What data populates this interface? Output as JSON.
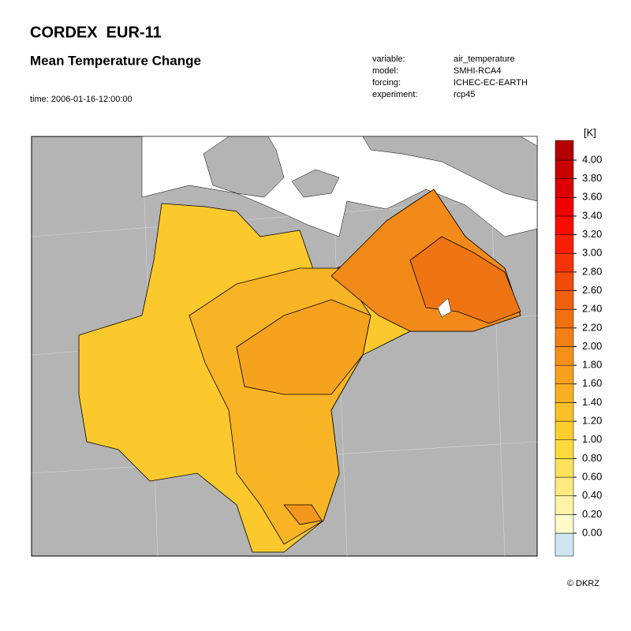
{
  "header": {
    "title": "CORDEX  EUR-11",
    "subtitle": "Mean Temperature Change",
    "time": "time: 2006-01-16-12:00:00"
  },
  "meta": [
    {
      "label": "variable:",
      "value": "air_temperature"
    },
    {
      "label": "model:",
      "value": "SMHI-RCA4"
    },
    {
      "label": "forcing:",
      "value": "ICHEC-EC-EARTH"
    },
    {
      "label": "experiment:",
      "value": "rcp45"
    }
  ],
  "colorbar": {
    "unit": "[K]",
    "levels": [
      {
        "value": 0,
        "label": "0.00"
      },
      {
        "value": 0.2,
        "label": "0.20"
      },
      {
        "value": 0.4,
        "label": "0.40"
      },
      {
        "value": 0.6,
        "label": "0.60"
      },
      {
        "value": 0.8,
        "label": "0.80"
      },
      {
        "value": 1,
        "label": "1.00"
      },
      {
        "value": 1.2,
        "label": "1.20"
      },
      {
        "value": 1.4,
        "label": "1.40"
      },
      {
        "value": 1.6,
        "label": "1.60"
      },
      {
        "value": 1.8,
        "label": "1.80"
      },
      {
        "value": 2,
        "label": "2.00"
      },
      {
        "value": 2.2,
        "label": "2.20"
      },
      {
        "value": 2.4,
        "label": "2.40"
      },
      {
        "value": 2.6,
        "label": "2.60"
      },
      {
        "value": 2.8,
        "label": "2.80"
      },
      {
        "value": 3,
        "label": "3.00"
      },
      {
        "value": 3.2,
        "label": "3.20"
      },
      {
        "value": 3.4,
        "label": "3.40"
      },
      {
        "value": 3.6,
        "label": "3.60"
      },
      {
        "value": 3.8,
        "label": "3.80"
      },
      {
        "value": 4,
        "label": "4.00"
      }
    ],
    "colors": [
      "#cde6f2",
      "#fffbcc",
      "#fff3a8",
      "#ffeb80",
      "#ffe25a",
      "#ffda3c",
      "#fdce2e",
      "#fbc026",
      "#f9b020",
      "#f7a01c",
      "#f59018",
      "#f38014",
      "#f17010",
      "#f0600c",
      "#f24a08",
      "#f53306",
      "#f81e04",
      "#fb0c02",
      "#f00000",
      "#dc0000",
      "#c80000",
      "#b40000"
    ]
  },
  "copyright": "© DKRZ"
}
